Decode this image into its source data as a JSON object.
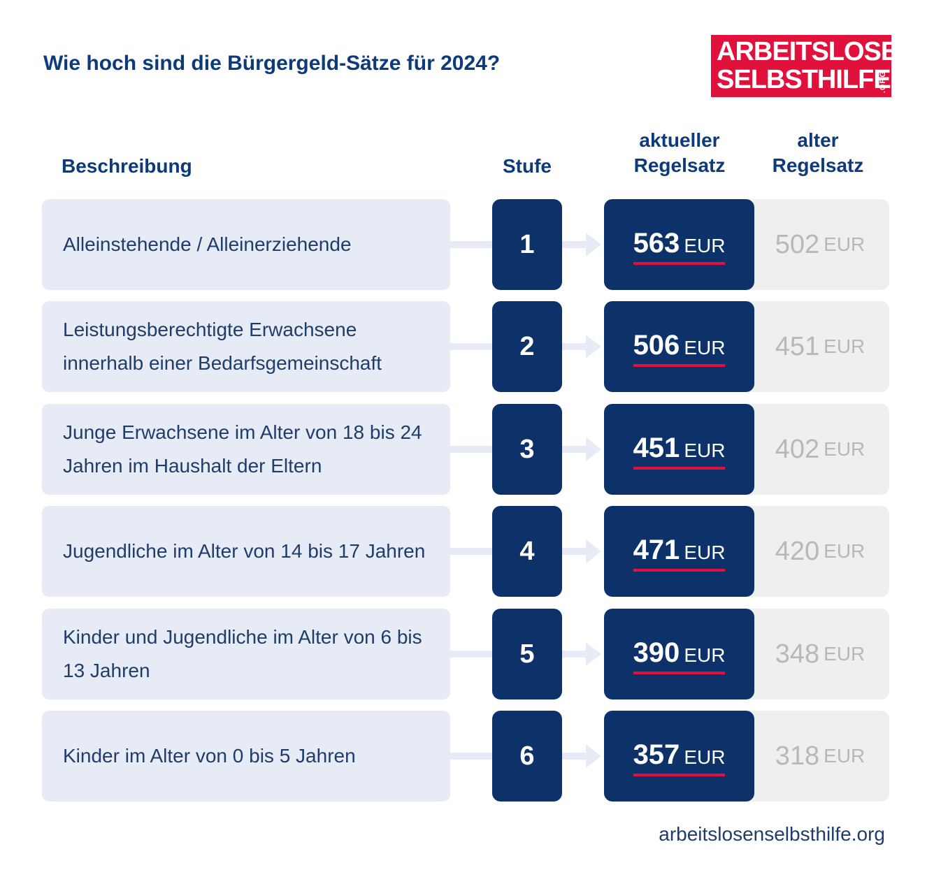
{
  "title": "Wie hoch sind die Bürgergeld-Sätze für 2024?",
  "logo": {
    "line1": "ARBEITSLOSEN",
    "line2": "SELBSTHILFE",
    "suffix": ".ORG"
  },
  "columns": {
    "description": "Beschreibung",
    "level": "Stufe",
    "current": "aktueller Regelsatz",
    "old": "alter Regelsatz"
  },
  "rows": [
    {
      "description": "Alleinstehende / Alleinerziehende",
      "level": "1",
      "current": "563",
      "old": "502",
      "unit": "EUR"
    },
    {
      "description": "Leistungsberechtigte Erwachsene innerhalb einer Bedarfsgemeinschaft",
      "level": "2",
      "current": "506",
      "old": "451",
      "unit": "EUR"
    },
    {
      "description": "Junge Erwachsene im Alter von 18 bis 24 Jahren im Haushalt der Eltern",
      "level": "3",
      "current": "451",
      "old": "402",
      "unit": "EUR"
    },
    {
      "description": "Jugendliche im Alter von 14 bis 17 Jahren",
      "level": "4",
      "current": "471",
      "old": "420",
      "unit": "EUR"
    },
    {
      "description": "Kinder und Jugendliche im Alter von 6 bis 13 Jahren",
      "level": "5",
      "current": "390",
      "old": "348",
      "unit": "EUR"
    },
    {
      "description": "Kinder im Alter von 0 bis 5 Jahren",
      "level": "6",
      "current": "357",
      "old": "318",
      "unit": "EUR"
    }
  ],
  "footer": "arbeitslosenselbsthilfe.org",
  "colors": {
    "navy": "#0d3269",
    "red": "#e0123c",
    "light_blue": "#e6ebf5",
    "light_gray": "#efefef"
  }
}
